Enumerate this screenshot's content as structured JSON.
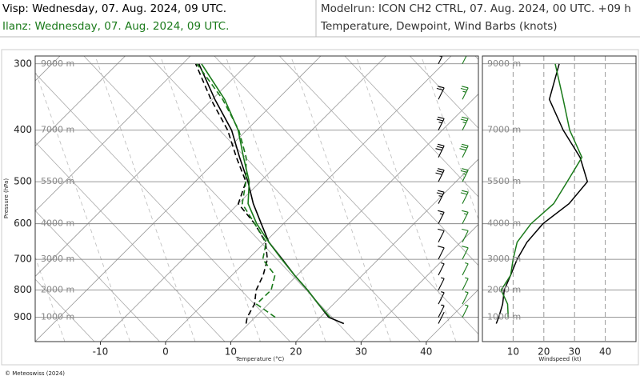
{
  "header": {
    "station_1": "Visp: Wednesday, 07. Aug. 2024, 09 UTC.",
    "station_2": "Ilanz: Wednesday, 07. Aug. 2024, 09 UTC.",
    "model_run": "Modelrun: ICON CH2 CTRL, 07. Aug. 2024, 00 UTC. +09 h"
  },
  "footer": "© Meteoswiss (2024)",
  "chart_data": [
    {
      "type": "skewt",
      "title": "Temperature, Dewpoint, Wind Barbs (knots)",
      "xlabel": "Temperature (°C)",
      "ylabel": "Pressure (hPa)",
      "xlim": [
        -20,
        48
      ],
      "xticks": [
        -10,
        0,
        10,
        20,
        30,
        40
      ],
      "ylim": [
        1000,
        290
      ],
      "yticks": [
        300,
        400,
        500,
        600,
        700,
        800,
        900
      ],
      "log_y": true,
      "height_ticks": [
        {
          "value": 300,
          "label": "9000 m"
        },
        {
          "value": 400,
          "label": "7000 m"
        },
        {
          "value": 500,
          "label": "5500 m"
        },
        {
          "value": 600,
          "label": "4000 m"
        },
        {
          "value": 700,
          "label": "3000 m"
        },
        {
          "value": 800,
          "label": "2000 m"
        },
        {
          "value": 900,
          "label": "1000 m"
        }
      ],
      "y": [
        925,
        900,
        850,
        800,
        750,
        700,
        650,
        600,
        550,
        500,
        450,
        400,
        350,
        300
      ],
      "series": [
        {
          "color": "#000000",
          "dashed": false,
          "values": [
            24.6,
            21.3,
            17.7,
            13.9,
            9.6,
            5.3,
            0.6,
            -3.4,
            -7.7,
            -11.9,
            -16.9,
            -22.3,
            -29.6,
            -37.5
          ]
        },
        {
          "color": "#000000",
          "dashed": true,
          "values": [
            9.6,
            8.8,
            7.9,
            6.0,
            4.8,
            3.0,
            0.1,
            -4.4,
            -10.0,
            -12.2,
            -17.4,
            -22.9,
            -30.2,
            -38.0
          ]
        },
        {
          "color": "#1a7a1a",
          "dashed": false,
          "values": [
            null,
            21.5,
            17.7,
            13.9,
            9.6,
            5.2,
            0.6,
            -4.1,
            -8.5,
            -11.7,
            -16.3,
            -21.3,
            -28.1,
            -37.1
          ]
        },
        {
          "color": "#1a7a1a",
          "dashed": true,
          "values": [
            null,
            13.1,
            8.2,
            8.3,
            6.6,
            2.3,
            0.2,
            -4.4,
            -9.4,
            -12.2,
            -15.9,
            -21.2,
            -28.4,
            -37.8
          ]
        }
      ]
    },
    {
      "type": "line",
      "xlabel": "Windspeed (kt)",
      "xlim": [
        0,
        50
      ],
      "xticks": [
        10,
        20,
        30,
        40
      ],
      "ylim": [
        1000,
        290
      ],
      "log_y": true,
      "y": [
        925,
        900,
        850,
        800,
        750,
        700,
        650,
        600,
        550,
        500,
        450,
        400,
        350,
        300
      ],
      "series": [
        {
          "color": "#000000",
          "values": [
            4.5,
            5.3,
            6.6,
            7.1,
            9.2,
            11.3,
            14.5,
            19.7,
            28.2,
            34.2,
            31.8,
            26.3,
            21.8,
            25.0
          ]
        },
        {
          "color": "#1a7a1a",
          "values": [
            null,
            8.4,
            8.2,
            6.1,
            9.2,
            10.0,
            11.3,
            15.8,
            23.2,
            27.6,
            32.4,
            28.4,
            26.3,
            23.7
          ]
        }
      ]
    }
  ]
}
